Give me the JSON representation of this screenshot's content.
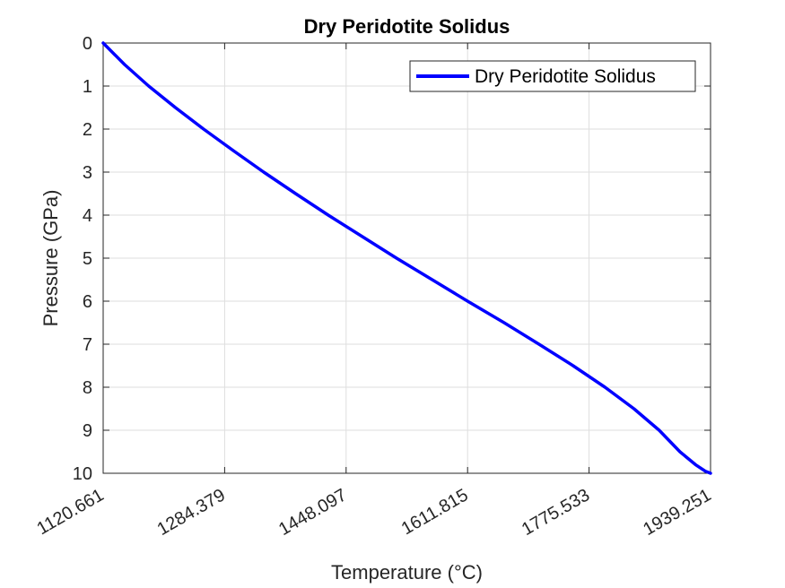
{
  "chart_data": {
    "type": "line",
    "title": "Dry Peridotite Solidus",
    "xlabel": "Temperature (°C)",
    "ylabel": "Pressure (GPa)",
    "xlim": [
      1120.661,
      1939.251
    ],
    "ylim": [
      0,
      10
    ],
    "y_reversed": true,
    "grid": true,
    "legend_position": "top-right",
    "x_tick_labels": [
      "1120.661",
      "1284.379",
      "1448.097",
      "1611.815",
      "1775.533",
      "1939.251"
    ],
    "y_tick_labels": [
      "0",
      "1",
      "2",
      "3",
      "4",
      "5",
      "6",
      "7",
      "8",
      "9",
      "10"
    ],
    "series": [
      {
        "name": "Dry Peridotite Solidus",
        "color": "#0000ff",
        "x": [
          1120.661,
          1149.5,
          1182.0,
          1218.0,
          1256.0,
          1296.0,
          1337.0,
          1380.0,
          1424.0,
          1470.0,
          1516.0,
          1564.0,
          1611.8,
          1661.0,
          1708.0,
          1754.0,
          1797.0,
          1836.0,
          1870.0,
          1898.0,
          1919.0,
          1932.0,
          1939.251
        ],
        "y": [
          0.0,
          0.5,
          1.0,
          1.5,
          2.0,
          2.5,
          3.0,
          3.5,
          4.0,
          4.5,
          5.0,
          5.5,
          6.0,
          6.5,
          7.0,
          7.5,
          8.0,
          8.5,
          9.0,
          9.5,
          9.8,
          9.95,
          10.0
        ]
      }
    ]
  }
}
